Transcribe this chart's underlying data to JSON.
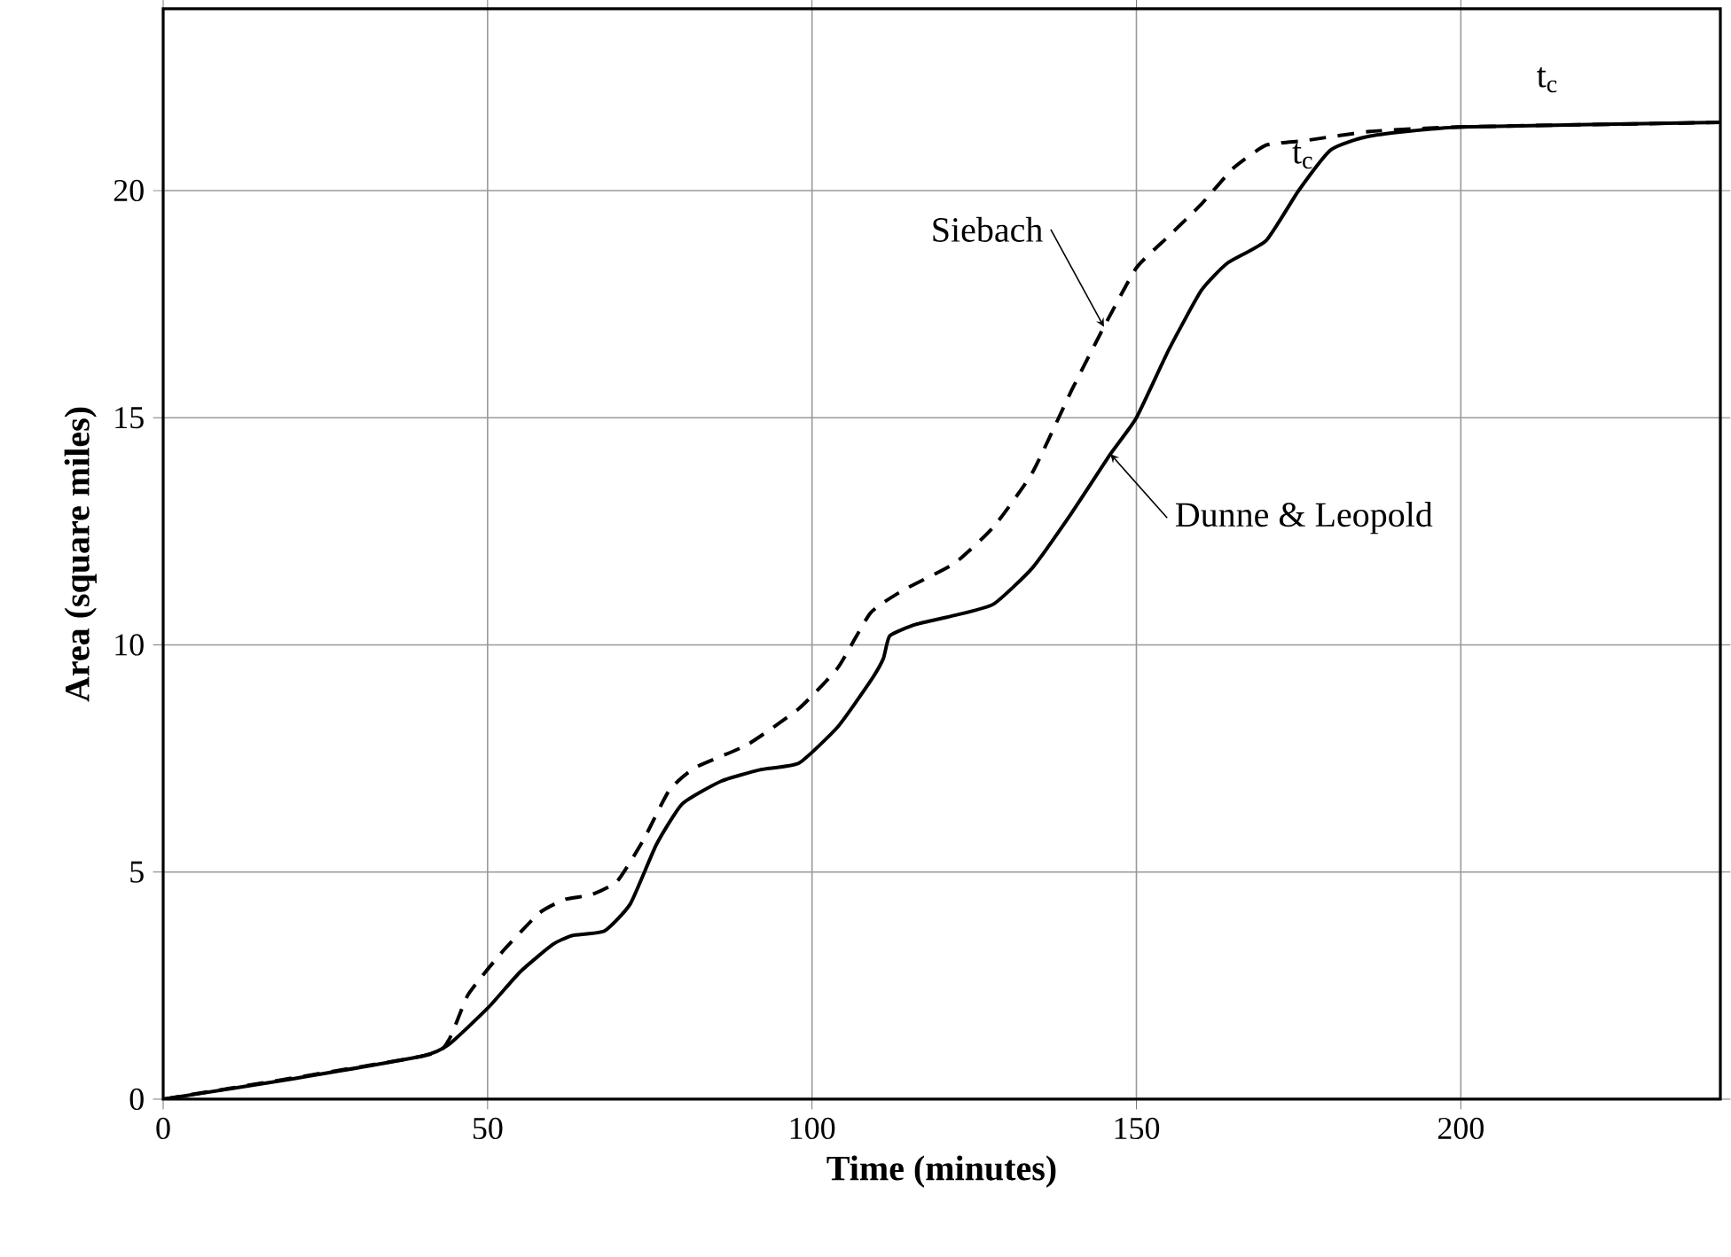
{
  "chart_data": {
    "type": "line",
    "xlabel": "Time  (minutes)",
    "ylabel": "Area (square miles)",
    "xlim": [
      0,
      240
    ],
    "ylim": [
      0,
      24
    ],
    "xticks": [
      0,
      50,
      100,
      150,
      200
    ],
    "yticks": [
      0,
      5,
      10,
      15,
      20
    ],
    "grid": true,
    "legend": false,
    "marker": "none",
    "series": [
      {
        "name": "Dunne  & Leopold",
        "color": "#000000",
        "line_style": "solid",
        "x": [
          0,
          20,
          40,
          44,
          50,
          55,
          60,
          63,
          68,
          72,
          76,
          80,
          86,
          92,
          98,
          104,
          109,
          111,
          112,
          116,
          122,
          128,
          134,
          140,
          146,
          150,
          155,
          160,
          164,
          170,
          175,
          180,
          186,
          200,
          240
        ],
        "values": [
          0,
          0.45,
          0.95,
          1.2,
          2.0,
          2.8,
          3.4,
          3.6,
          3.7,
          4.3,
          5.6,
          6.5,
          7.0,
          7.25,
          7.4,
          8.2,
          9.2,
          9.7,
          10.2,
          10.45,
          10.65,
          10.9,
          11.7,
          12.9,
          14.2,
          15.0,
          16.5,
          17.8,
          18.4,
          18.9,
          20.0,
          20.9,
          21.2,
          21.4,
          21.5
        ]
      },
      {
        "name": "Siebach",
        "color": "#000000",
        "line_style": "dashed",
        "x": [
          0,
          40,
          44,
          47,
          52,
          58,
          62,
          66,
          70,
          74,
          78,
          82,
          90,
          98,
          104,
          109,
          114,
          122,
          128,
          134,
          140,
          145,
          150,
          155,
          160,
          165,
          170,
          176,
          186,
          200,
          240
        ],
        "values": [
          0,
          0.95,
          1.3,
          2.3,
          3.2,
          4.1,
          4.4,
          4.5,
          4.8,
          5.7,
          6.8,
          7.3,
          7.8,
          8.6,
          9.5,
          10.7,
          11.2,
          11.8,
          12.6,
          13.8,
          15.6,
          17.0,
          18.3,
          19.0,
          19.7,
          20.5,
          21.0,
          21.1,
          21.3,
          21.4,
          21.5
        ]
      }
    ],
    "annotations": [
      "t$_{c}$",
      "t$_{c}$"
    ]
  }
}
